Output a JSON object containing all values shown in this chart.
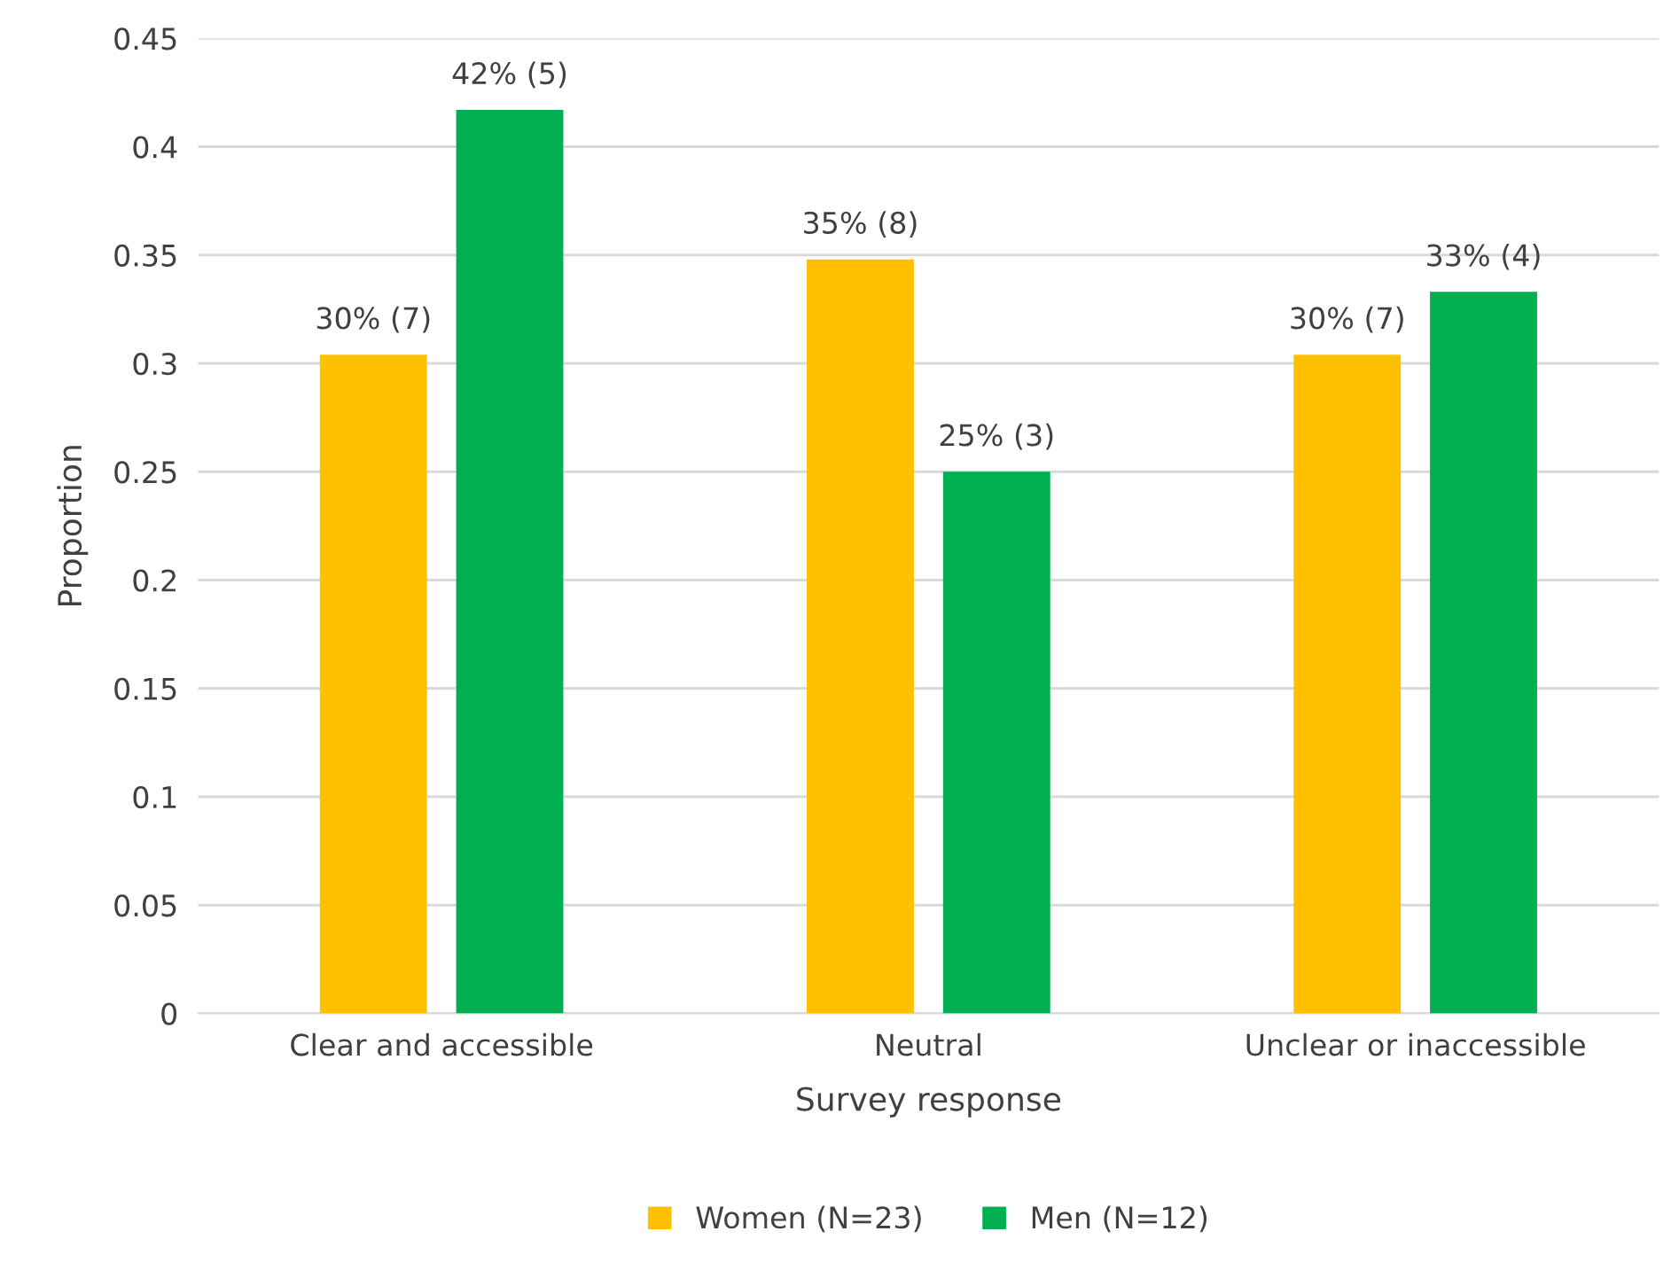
{
  "chart_data": {
    "type": "bar",
    "xlabel": "Survey response",
    "ylabel": "Proportion",
    "categories": [
      "Clear and accessible",
      "Neutral",
      "Unclear or inaccessible"
    ],
    "series": [
      {
        "name": "Women (N=23)",
        "color": "#ffc000",
        "values": [
          0.304,
          0.348,
          0.304
        ],
        "value_labels": [
          "30% (7)",
          "35% (8)",
          "30% (7)"
        ]
      },
      {
        "name": "Men (N=12)",
        "color": "#00b050",
        "values": [
          0.417,
          0.25,
          0.333
        ],
        "value_labels": [
          "42% (5)",
          "25% (3)",
          "33% (4)"
        ]
      }
    ],
    "ylim": [
      0,
      0.45
    ],
    "yticks": [
      0,
      0.05,
      0.1,
      0.15,
      0.2,
      0.25,
      0.3,
      0.35,
      0.4,
      0.45
    ],
    "grid": "y",
    "legend": "bottom"
  }
}
